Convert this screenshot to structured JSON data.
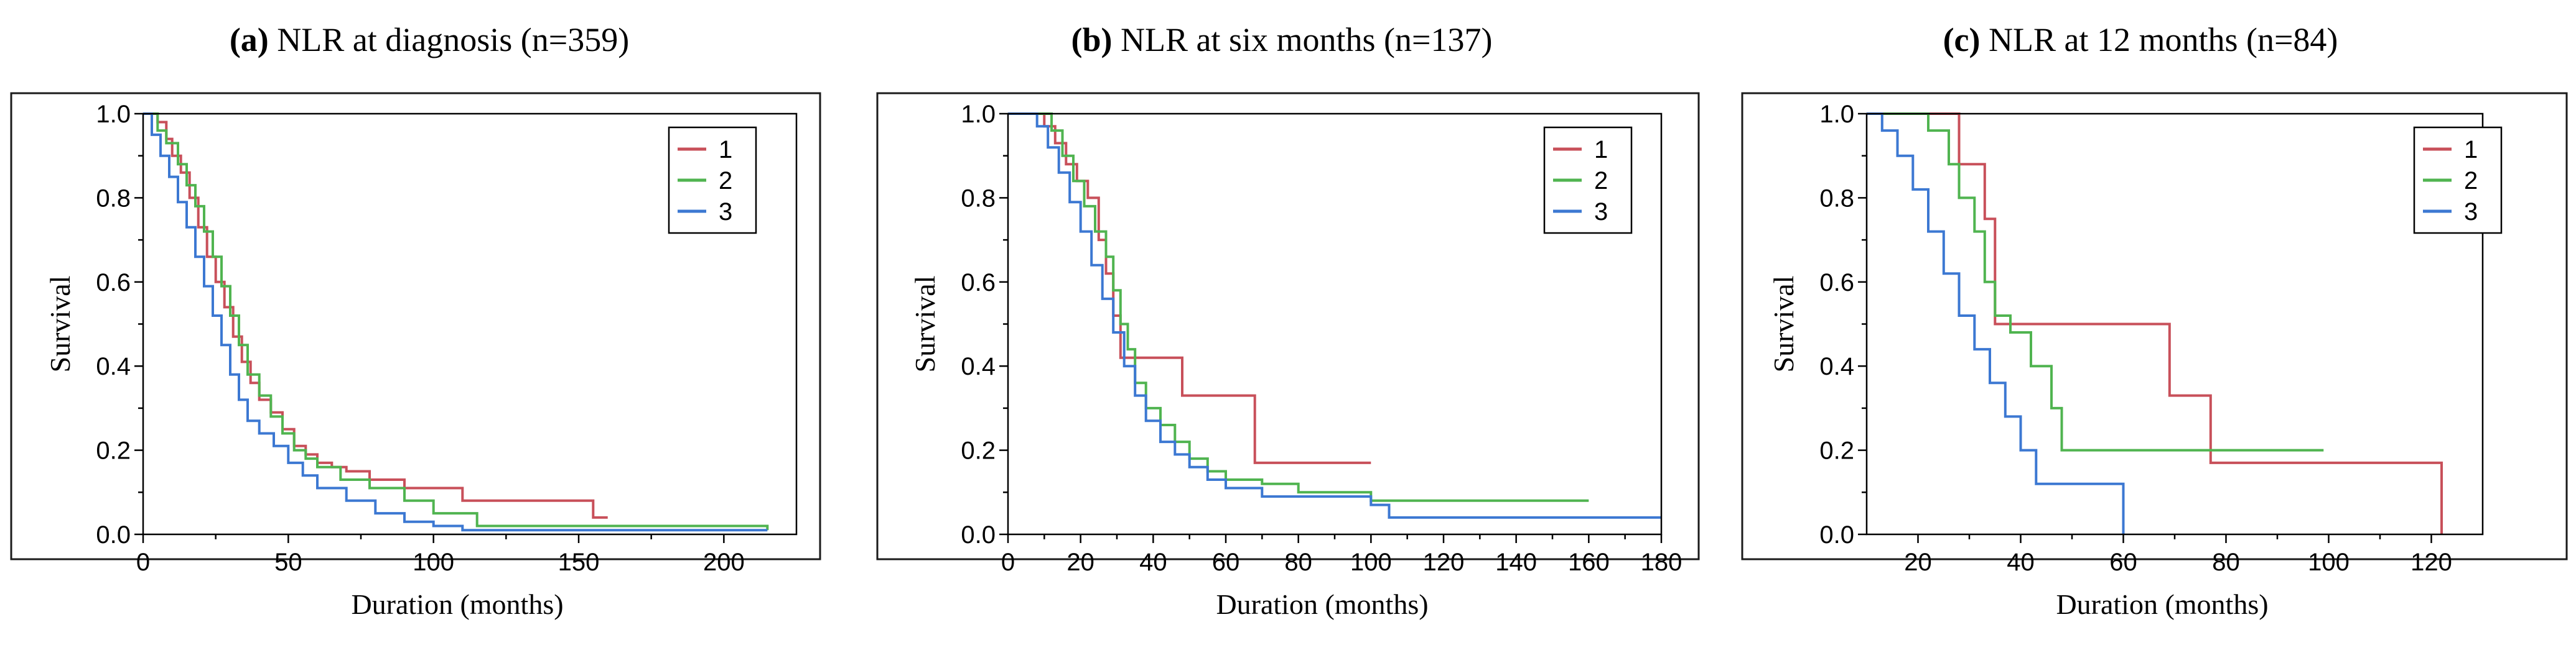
{
  "series_colors": [
    "#c8505a",
    "#50b450",
    "#3c78d2"
  ],
  "chart_data": [
    {
      "type": "line",
      "panel_label": "(a)",
      "title": "NLR at diagnosis (n=359)",
      "xlabel": "Duration (months)",
      "ylabel": "Survival",
      "xlim": [
        0,
        225
      ],
      "ylim": [
        0,
        1
      ],
      "xticks": [
        0,
        50,
        100,
        150,
        200
      ],
      "yticks": [
        0.0,
        0.2,
        0.4,
        0.6,
        0.8,
        1.0
      ],
      "legend": [
        "1",
        "2",
        "3"
      ],
      "legend_position": "top-right",
      "series": [
        {
          "name": "1",
          "x": [
            0,
            5,
            8,
            10,
            13,
            16,
            19,
            22,
            25,
            28,
            31,
            34,
            37,
            40,
            44,
            48,
            52,
            56,
            60,
            65,
            70,
            78,
            90,
            110,
            125,
            140,
            155,
            160
          ],
          "y": [
            1.0,
            0.98,
            0.94,
            0.9,
            0.86,
            0.8,
            0.73,
            0.66,
            0.6,
            0.54,
            0.47,
            0.41,
            0.36,
            0.32,
            0.29,
            0.25,
            0.21,
            0.19,
            0.17,
            0.16,
            0.15,
            0.13,
            0.11,
            0.08,
            0.08,
            0.08,
            0.04,
            0.04
          ]
        },
        {
          "name": "2",
          "x": [
            0,
            5,
            8,
            12,
            15,
            18,
            21,
            24,
            27,
            30,
            33,
            36,
            40,
            44,
            48,
            52,
            56,
            60,
            68,
            78,
            90,
            100,
            115,
            215
          ],
          "y": [
            1.0,
            0.96,
            0.93,
            0.88,
            0.83,
            0.78,
            0.72,
            0.66,
            0.59,
            0.52,
            0.45,
            0.38,
            0.33,
            0.28,
            0.24,
            0.2,
            0.18,
            0.16,
            0.13,
            0.11,
            0.08,
            0.05,
            0.02,
            0.01
          ]
        },
        {
          "name": "3",
          "x": [
            0,
            3,
            6,
            9,
            12,
            15,
            18,
            21,
            24,
            27,
            30,
            33,
            36,
            40,
            45,
            50,
            55,
            60,
            70,
            80,
            90,
            100,
            110,
            215
          ],
          "y": [
            1.0,
            0.95,
            0.9,
            0.85,
            0.79,
            0.73,
            0.66,
            0.59,
            0.52,
            0.45,
            0.38,
            0.32,
            0.27,
            0.24,
            0.21,
            0.17,
            0.14,
            0.11,
            0.08,
            0.05,
            0.03,
            0.02,
            0.01,
            0.01
          ]
        }
      ]
    },
    {
      "type": "line",
      "panel_label": "(b)",
      "title": "NLR at six months (n=137)",
      "xlabel": "Duration (months)",
      "ylabel": "Survival",
      "xlim": [
        0,
        180
      ],
      "ylim": [
        0,
        1
      ],
      "xticks": [
        0,
        20,
        40,
        60,
        80,
        100,
        120,
        140,
        160,
        180
      ],
      "yticks": [
        0.0,
        0.2,
        0.4,
        0.6,
        0.8,
        1.0
      ],
      "legend": [
        "1",
        "2",
        "3"
      ],
      "legend_position": "top-right",
      "series": [
        {
          "name": "1",
          "x": [
            0,
            10,
            13,
            16,
            19,
            22,
            25,
            27,
            29,
            31,
            33,
            36,
            40,
            48,
            55,
            68,
            70,
            100
          ],
          "y": [
            1.0,
            0.97,
            0.93,
            0.88,
            0.84,
            0.8,
            0.7,
            0.62,
            0.52,
            0.42,
            0.42,
            0.42,
            0.42,
            0.33,
            0.33,
            0.17,
            0.17,
            0.17
          ]
        },
        {
          "name": "2",
          "x": [
            0,
            12,
            15,
            18,
            21,
            24,
            27,
            29,
            31,
            33,
            35,
            38,
            42,
            46,
            50,
            55,
            60,
            70,
            80,
            100,
            160
          ],
          "y": [
            1.0,
            0.96,
            0.9,
            0.84,
            0.78,
            0.72,
            0.66,
            0.58,
            0.5,
            0.44,
            0.36,
            0.3,
            0.26,
            0.22,
            0.18,
            0.15,
            0.13,
            0.12,
            0.1,
            0.08,
            0.08
          ]
        },
        {
          "name": "3",
          "x": [
            0,
            8,
            11,
            14,
            17,
            20,
            23,
            26,
            29,
            32,
            35,
            38,
            42,
            46,
            50,
            55,
            60,
            70,
            85,
            100,
            105,
            180
          ],
          "y": [
            1.0,
            0.97,
            0.92,
            0.86,
            0.79,
            0.72,
            0.64,
            0.56,
            0.48,
            0.4,
            0.33,
            0.27,
            0.22,
            0.19,
            0.16,
            0.13,
            0.11,
            0.09,
            0.09,
            0.07,
            0.04,
            0.04
          ]
        }
      ]
    },
    {
      "type": "line",
      "panel_label": "(c)",
      "title": "NLR at 12 months (n=84)",
      "xlabel": "Duration (months)",
      "ylabel": "Survival",
      "xlim": [
        10,
        130
      ],
      "ylim": [
        0,
        1
      ],
      "xticks": [
        20,
        40,
        60,
        80,
        100,
        120
      ],
      "yticks": [
        0.0,
        0.2,
        0.4,
        0.6,
        0.8,
        1.0
      ],
      "legend": [
        "1",
        "2",
        "3"
      ],
      "legend_position": "top-right",
      "series": [
        {
          "name": "1",
          "x": [
            10,
            28,
            33,
            35,
            38,
            45,
            69,
            77,
            90,
            110,
            122
          ],
          "y": [
            1.0,
            0.88,
            0.75,
            0.5,
            0.5,
            0.5,
            0.33,
            0.17,
            0.17,
            0.17,
            0.0
          ]
        },
        {
          "name": "2",
          "x": [
            10,
            22,
            26,
            28,
            31,
            33,
            35,
            38,
            42,
            46,
            48,
            60,
            80,
            99
          ],
          "y": [
            1.0,
            0.96,
            0.88,
            0.8,
            0.72,
            0.6,
            0.52,
            0.48,
            0.4,
            0.3,
            0.2,
            0.2,
            0.2,
            0.2
          ]
        },
        {
          "name": "3",
          "x": [
            10,
            13,
            16,
            19,
            22,
            25,
            28,
            31,
            34,
            37,
            40,
            43,
            46,
            50,
            55,
            60
          ],
          "y": [
            1.0,
            0.96,
            0.9,
            0.82,
            0.72,
            0.62,
            0.52,
            0.44,
            0.36,
            0.28,
            0.2,
            0.12,
            0.12,
            0.12,
            0.12,
            0.0
          ]
        }
      ]
    }
  ]
}
